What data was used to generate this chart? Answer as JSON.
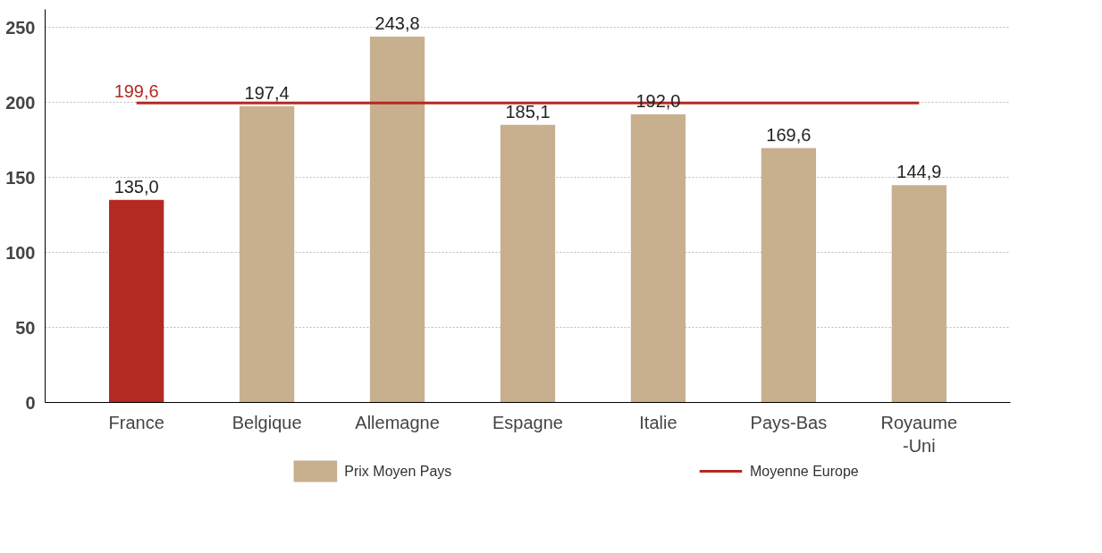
{
  "chart_data": {
    "type": "bar",
    "categories": [
      "France",
      "Belgique",
      "Allemagne",
      "Espagne",
      "Italie",
      "Pays-Bas",
      "Royaume\n-Uni"
    ],
    "series": [
      {
        "name": "Prix Moyen Pays",
        "colors": [
          "#b22a22",
          "#c8b08e",
          "#c8b08e",
          "#c8b08e",
          "#c8b08e",
          "#c8b08e",
          "#c8b08e"
        ],
        "values": [
          135.0,
          197.4,
          243.8,
          185.1,
          192.0,
          169.6,
          144.9
        ],
        "value_labels": [
          "135,0",
          "197,4",
          "243,8",
          "185,1",
          "192,0",
          "169,6",
          "144,9"
        ]
      },
      {
        "name": "Moyenne Europe",
        "type": "line",
        "color": "#b22a22",
        "values": [
          199.6,
          199.6,
          199.6,
          199.6,
          199.6,
          199.6,
          199.6
        ],
        "value_labels": [
          "199,6",
          null,
          null,
          null,
          null,
          null,
          null
        ]
      }
    ],
    "ylim": [
      0,
      262
    ],
    "yticks": [
      0,
      50,
      100,
      150,
      200,
      250
    ],
    "grid": "y",
    "legend": "bottom",
    "line_style": "solid",
    "marker": "none"
  }
}
